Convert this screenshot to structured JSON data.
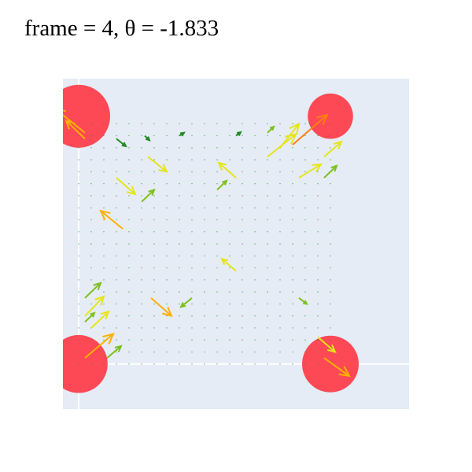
{
  "chart_data": {
    "type": "scatter",
    "title": "frame = 4, θ = -1.833",
    "xlabel": "",
    "ylabel": "",
    "xlim": [
      -0.5,
      10.5
    ],
    "ylim": [
      -1.5,
      9.5
    ],
    "grid": true,
    "zero_lines": true,
    "colors": {
      "background": "#e5ecf6",
      "grid": "#ffffff",
      "circle": "#ff3b47",
      "arrow_scale": [
        "#228b22",
        "#7fbf1f",
        "#e5e51a",
        "#ffb000",
        "#ff7f0e"
      ]
    },
    "circles": [
      {
        "x": 0,
        "y": 8.25,
        "r": 1.0
      },
      {
        "x": 8.0,
        "y": 8.25,
        "r": 0.72
      },
      {
        "x": 0,
        "y": 0,
        "r": 0.92
      },
      {
        "x": 8.0,
        "y": 0,
        "r": 0.9
      }
    ],
    "grid_points": {
      "x_start": 0,
      "x_end": 8.0,
      "y_start": 0,
      "y_end": 8.0,
      "step": 0.4
    },
    "arrows": [
      {
        "x": 0.2,
        "y": 7.5,
        "u": -0.6,
        "v": 0.6,
        "m": 0.75
      },
      {
        "x": 0.2,
        "y": 7.7,
        "u": -0.95,
        "v": 0.8,
        "m": 0.85
      },
      {
        "x": 1.2,
        "y": 7.5,
        "u": 0.3,
        "v": -0.25,
        "m": 0.1
      },
      {
        "x": 2.1,
        "y": 7.6,
        "u": 0.15,
        "v": -0.15,
        "m": 0.1
      },
      {
        "x": 3.2,
        "y": 7.6,
        "u": 0.15,
        "v": 0.1,
        "m": 0.1
      },
      {
        "x": 5.0,
        "y": 7.6,
        "u": 0.15,
        "v": 0.12,
        "m": 0.1
      },
      {
        "x": 6.0,
        "y": 7.7,
        "u": 0.2,
        "v": 0.2,
        "m": 0.2
      },
      {
        "x": 6.0,
        "y": 6.9,
        "u": 0.9,
        "v": 0.75,
        "m": 0.6
      },
      {
        "x": 6.4,
        "y": 7.2,
        "u": 0.6,
        "v": 0.8,
        "m": 0.4
      },
      {
        "x": 6.8,
        "y": 7.3,
        "u": 1.1,
        "v": 1.0,
        "m": 1.0
      },
      {
        "x": 7.8,
        "y": 6.9,
        "u": 0.55,
        "v": 0.5,
        "m": 0.5
      },
      {
        "x": 7.0,
        "y": 6.2,
        "u": 0.7,
        "v": 0.45,
        "m": 0.6
      },
      {
        "x": 7.8,
        "y": 6.2,
        "u": 0.4,
        "v": 0.4,
        "m": 0.3
      },
      {
        "x": 2.2,
        "y": 6.9,
        "u": 0.6,
        "v": -0.5,
        "m": 0.5
      },
      {
        "x": 5.0,
        "y": 6.2,
        "u": -0.55,
        "v": 0.5,
        "m": 0.45
      },
      {
        "x": 1.2,
        "y": 6.2,
        "u": 0.6,
        "v": -0.55,
        "m": 0.5
      },
      {
        "x": 2.0,
        "y": 5.4,
        "u": 0.4,
        "v": 0.4,
        "m": 0.35
      },
      {
        "x": 0.2,
        "y": 2.2,
        "u": 0.5,
        "v": 0.5,
        "m": 0.25
      },
      {
        "x": 0.2,
        "y": 1.6,
        "u": 0.6,
        "v": 0.65,
        "m": 0.45
      },
      {
        "x": 0.4,
        "y": 1.2,
        "u": 0.55,
        "v": 0.55,
        "m": 0.4
      },
      {
        "x": 0.2,
        "y": 1.4,
        "u": 0.3,
        "v": 0.3,
        "m": 0.35
      },
      {
        "x": 0.2,
        "y": 0.2,
        "u": 0.9,
        "v": 0.8,
        "m": 0.7
      },
      {
        "x": 0.9,
        "y": 0.2,
        "u": 0.45,
        "v": 0.4,
        "m": 0.3
      },
      {
        "x": 1.4,
        "y": 4.5,
        "u": -0.7,
        "v": 0.6,
        "m": 0.7
      },
      {
        "x": 2.3,
        "y": 2.2,
        "u": 0.65,
        "v": -0.6,
        "m": 0.7
      },
      {
        "x": 3.6,
        "y": 2.2,
        "u": -0.35,
        "v": -0.3,
        "m": 0.3
      },
      {
        "x": 5.0,
        "y": 3.1,
        "u": -0.45,
        "v": 0.4,
        "m": 0.4
      },
      {
        "x": 7.6,
        "y": 0.9,
        "u": 0.55,
        "v": -0.5,
        "m": 0.55
      },
      {
        "x": 7.8,
        "y": 0.2,
        "u": 0.8,
        "v": -0.6,
        "m": 0.8
      },
      {
        "x": 7.0,
        "y": 2.2,
        "u": 0.25,
        "v": -0.2,
        "m": 0.2
      },
      {
        "x": 4.4,
        "y": 5.8,
        "u": 0.3,
        "v": 0.3,
        "m": 0.2
      }
    ]
  }
}
